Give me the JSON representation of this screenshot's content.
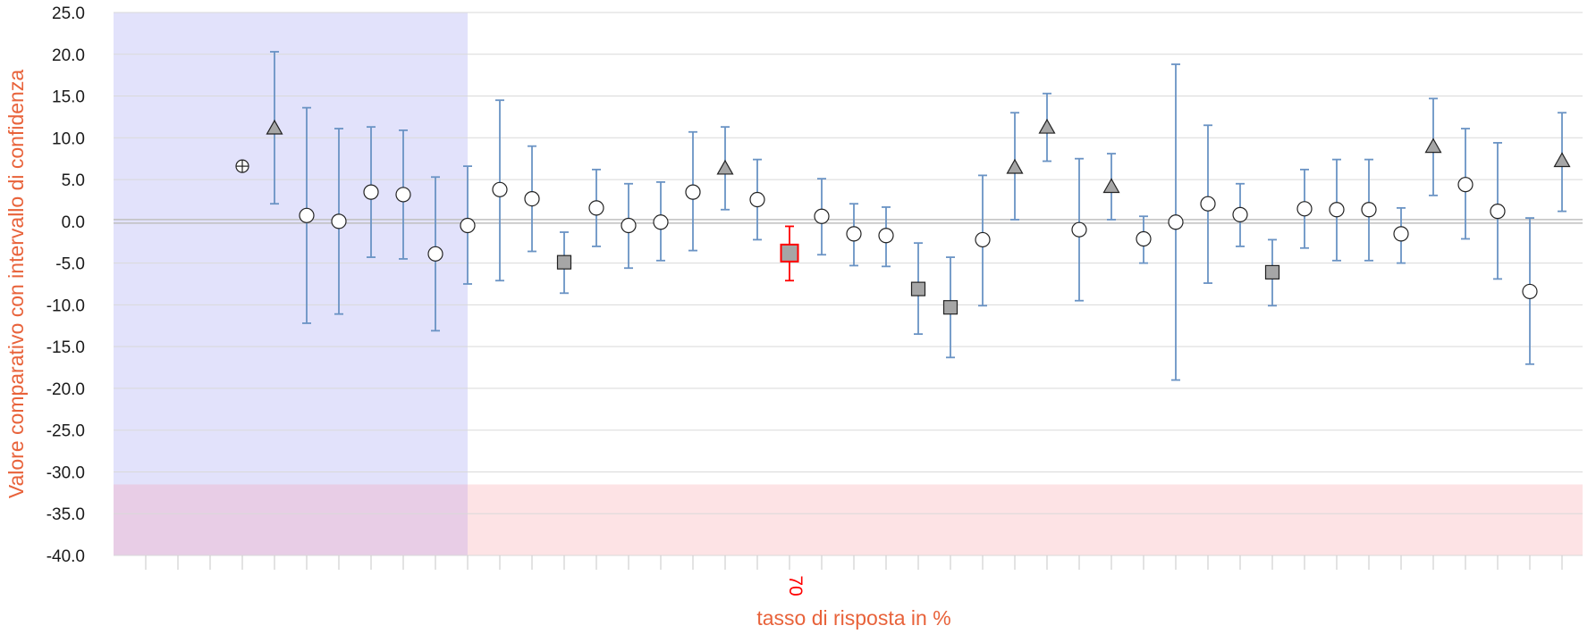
{
  "chart_data": {
    "type": "scatter",
    "title": "",
    "xlabel": "tasso di risposta in %",
    "ylabel": "Valore comparativo con intervallo di confidenza",
    "ylim": [
      -40,
      25
    ],
    "y_ticks": [
      "25.0",
      "20.0",
      "15.0",
      "10.0",
      "5.0",
      "0.0",
      "-5.0",
      "-10.0",
      "-15.0",
      "-20.0",
      "-25.0",
      "-30.0",
      "-35.0",
      "-40.0"
    ],
    "x_tick_labels": [
      {
        "index": 21,
        "label": "70"
      }
    ],
    "grid": true,
    "colors": {
      "axis_title": "#e8623a",
      "highlight": "#ff0000",
      "error_bar": "#6a93c4",
      "blue_band": "#e2e2fb",
      "red_band": "#fde3e5",
      "overlap_band": "#e8cde6",
      "gray_marker": "#a6a6a6",
      "gridline": "#d9d9d9",
      "zero_line": "#bfbfbf"
    },
    "regions": [
      {
        "type": "band",
        "x_range": [
          0,
          11
        ],
        "y_range": [
          -40,
          25
        ],
        "color": "blue"
      },
      {
        "type": "band",
        "x_range": [
          0,
          45
        ],
        "y_range": [
          -40,
          -31.5
        ],
        "color": "red"
      }
    ],
    "points": [
      {
        "index": 4,
        "marker": "crossed-circle",
        "y": 6.6
      },
      {
        "index": 5,
        "marker": "triangle",
        "y": 11.1,
        "lo": 2.1,
        "hi": 20.3
      },
      {
        "index": 6,
        "marker": "circle",
        "y": 0.7,
        "lo": -12.2,
        "hi": 13.6
      },
      {
        "index": 7,
        "marker": "circle",
        "y": 0.0,
        "lo": -11.1,
        "hi": 11.1
      },
      {
        "index": 8,
        "marker": "circle",
        "y": 3.5,
        "lo": -4.3,
        "hi": 11.3
      },
      {
        "index": 9,
        "marker": "circle",
        "y": 3.2,
        "lo": -4.5,
        "hi": 10.9
      },
      {
        "index": 10,
        "marker": "circle",
        "y": -3.9,
        "lo": -13.1,
        "hi": 5.3
      },
      {
        "index": 11,
        "marker": "circle",
        "y": -0.5,
        "lo": -7.5,
        "hi": 6.6
      },
      {
        "index": 12,
        "marker": "circle",
        "y": 3.8,
        "lo": -7.1,
        "hi": 14.5
      },
      {
        "index": 13,
        "marker": "circle",
        "y": 2.7,
        "lo": -3.6,
        "hi": 9.0
      },
      {
        "index": 14,
        "marker": "square",
        "y": -4.9,
        "lo": -8.6,
        "hi": -1.3
      },
      {
        "index": 15,
        "marker": "circle",
        "y": 1.6,
        "lo": -3.0,
        "hi": 6.2
      },
      {
        "index": 16,
        "marker": "circle",
        "y": -0.5,
        "lo": -5.6,
        "hi": 4.5
      },
      {
        "index": 17,
        "marker": "circle",
        "y": -0.1,
        "lo": -4.7,
        "hi": 4.7
      },
      {
        "index": 18,
        "marker": "circle",
        "y": 3.5,
        "lo": -3.5,
        "hi": 10.7
      },
      {
        "index": 19,
        "marker": "triangle",
        "y": 6.3,
        "lo": 1.4,
        "hi": 11.3
      },
      {
        "index": 20,
        "marker": "circle",
        "y": 2.6,
        "lo": -2.2,
        "hi": 7.4
      },
      {
        "index": 21,
        "marker": "square",
        "y": -3.8,
        "lo": -7.1,
        "hi": -0.6,
        "highlight": true
      },
      {
        "index": 22,
        "marker": "circle",
        "y": 0.6,
        "lo": -4.0,
        "hi": 5.1
      },
      {
        "index": 23,
        "marker": "circle",
        "y": -1.5,
        "lo": -5.3,
        "hi": 2.1
      },
      {
        "index": 24,
        "marker": "circle",
        "y": -1.7,
        "lo": -5.4,
        "hi": 1.7
      },
      {
        "index": 25,
        "marker": "square",
        "y": -8.1,
        "lo": -13.5,
        "hi": -2.6
      },
      {
        "index": 26,
        "marker": "square",
        "y": -10.3,
        "lo": -16.3,
        "hi": -4.3
      },
      {
        "index": 27,
        "marker": "circle",
        "y": -2.2,
        "lo": -10.1,
        "hi": 5.5
      },
      {
        "index": 28,
        "marker": "triangle",
        "y": 6.4,
        "lo": 0.2,
        "hi": 13.0
      },
      {
        "index": 29,
        "marker": "triangle",
        "y": 11.2,
        "lo": 7.2,
        "hi": 15.3
      },
      {
        "index": 30,
        "marker": "circle",
        "y": -1.0,
        "lo": -9.5,
        "hi": 7.5
      },
      {
        "index": 31,
        "marker": "triangle",
        "y": 4.1,
        "lo": 0.2,
        "hi": 8.1
      },
      {
        "index": 32,
        "marker": "circle",
        "y": -2.1,
        "lo": -5.0,
        "hi": 0.6
      },
      {
        "index": 33,
        "marker": "circle",
        "y": -0.1,
        "lo": -19.0,
        "hi": 18.8
      },
      {
        "index": 34,
        "marker": "circle",
        "y": 2.1,
        "lo": -7.4,
        "hi": 11.5
      },
      {
        "index": 35,
        "marker": "circle",
        "y": 0.8,
        "lo": -3.0,
        "hi": 4.5
      },
      {
        "index": 36,
        "marker": "square",
        "y": -6.1,
        "lo": -10.1,
        "hi": -2.2
      },
      {
        "index": 37,
        "marker": "circle",
        "y": 1.5,
        "lo": -3.2,
        "hi": 6.2
      },
      {
        "index": 38,
        "marker": "circle",
        "y": 1.4,
        "lo": -4.7,
        "hi": 7.4
      },
      {
        "index": 39,
        "marker": "circle",
        "y": 1.4,
        "lo": -4.7,
        "hi": 7.4
      },
      {
        "index": 40,
        "marker": "circle",
        "y": -1.5,
        "lo": -5.0,
        "hi": 1.6
      },
      {
        "index": 41,
        "marker": "triangle",
        "y": 8.9,
        "lo": 3.1,
        "hi": 14.7
      },
      {
        "index": 42,
        "marker": "circle",
        "y": 4.4,
        "lo": -2.1,
        "hi": 11.1
      },
      {
        "index": 43,
        "marker": "circle",
        "y": 1.2,
        "lo": -6.9,
        "hi": 9.4
      },
      {
        "index": 44,
        "marker": "circle",
        "y": -8.4,
        "lo": -17.1,
        "hi": 0.4
      },
      {
        "index": 45,
        "marker": "triangle",
        "y": 7.2,
        "lo": 1.2,
        "hi": 13.0
      }
    ]
  }
}
